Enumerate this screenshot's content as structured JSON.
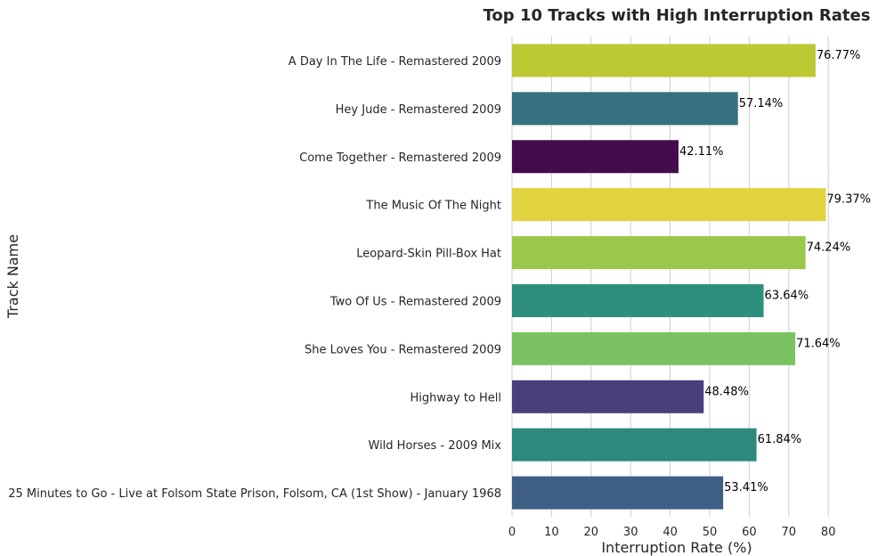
{
  "chart_data": {
    "type": "bar",
    "orientation": "horizontal",
    "title": "Top 10 Tracks with High Interruption Rates",
    "xlabel": "Interruption Rate (%)",
    "ylabel": "Track Name",
    "xlim": [
      0,
      82.5
    ],
    "xticks": [
      0,
      10,
      20,
      30,
      40,
      50,
      60,
      70,
      80
    ],
    "grid": "vertical",
    "categories": [
      "A Day In The Life - Remastered 2009",
      "Hey Jude - Remastered 2009",
      "Come Together - Remastered 2009",
      "The Music Of The Night",
      "Leopard-Skin Pill-Box Hat",
      "Two Of Us - Remastered 2009",
      "She Loves You - Remastered 2009",
      "Highway to Hell",
      "Wild Horses - 2009 Mix",
      "25 Minutes to Go - Live at Folsom State Prison, Folsom, CA (1st Show) - January 1968"
    ],
    "values": [
      76.77,
      57.14,
      42.11,
      79.37,
      74.24,
      63.64,
      71.64,
      48.48,
      61.84,
      53.41
    ],
    "data_labels": [
      "76.77%",
      "57.14%",
      "42.11%",
      "79.37%",
      "74.24%",
      "63.64%",
      "71.64%",
      "48.48%",
      "61.84%",
      "53.41%"
    ],
    "colors": [
      "#bcc933",
      "#357180",
      "#430d4c",
      "#e0d33d",
      "#9bc84a",
      "#2e907c",
      "#7bc362",
      "#4a3f7b",
      "#2d897e",
      "#3e5e85"
    ]
  }
}
